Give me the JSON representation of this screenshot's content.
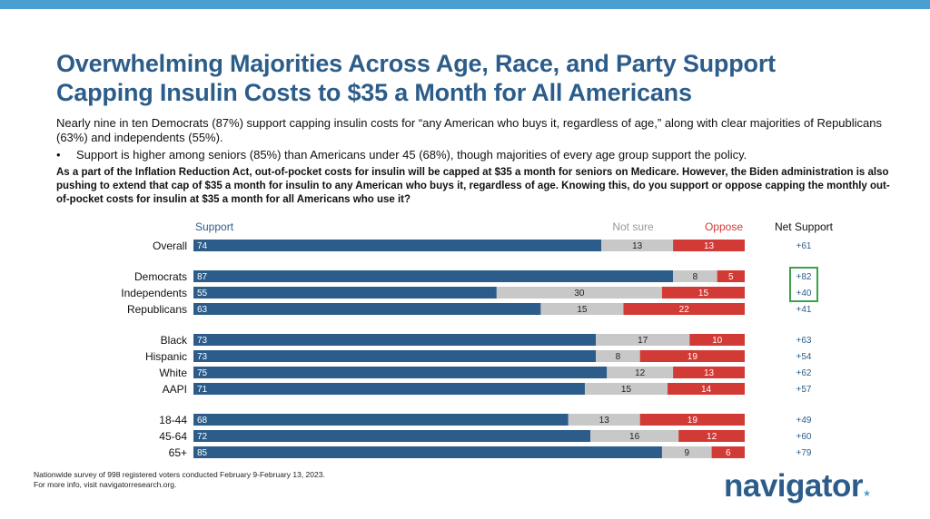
{
  "title_line1": "Overwhelming Majorities Across Age, Race, and Party Support",
  "title_line2": "Capping Insulin Costs to $35 a Month for All Americans",
  "subtitle": "Nearly nine in ten Democrats (87%) support capping insulin costs for “any American who buys it, regardless of age,” along with clear majorities of Republicans (63%) and independents (55%).",
  "bullet_marker": "•",
  "bullet": "Support is higher among seniors (85%) than Americans under 45 (68%), though majorities of every age group support the policy.",
  "question": "As a part of the Inflation Reduction Act, out-of-pocket costs for insulin will be capped at $35 a month for seniors on Medicare. However, the Biden administration is also pushing to extend that cap of $35 a month for insulin to any American who buys it, regardless of age. Knowing this, do you support or oppose capping the monthly out-of-pocket costs for insulin at $35 a month for all Americans who use it?",
  "footnote_line1": "Nationwide survey of 998 registered voters conducted February 9-February 13, 2023.",
  "footnote_line2": "For more info, visit navigatorresearch.org.",
  "logo_text": "navigator",
  "logo_star": "★",
  "colors": {
    "support": "#2c5d8a",
    "not_sure": "#c8c8c8",
    "oppose": "#d23a35",
    "net_highlight_box": "#3aa34a",
    "title": "#2c5d8a"
  },
  "chart_data": {
    "type": "bar",
    "orientation": "horizontal",
    "stacked": true,
    "headers": {
      "support": "Support",
      "not_sure": "Not sure",
      "oppose": "Oppose",
      "net": "Net Support"
    },
    "groups": [
      {
        "rows": [
          {
            "label": "Overall",
            "support": 74,
            "not_sure": 13,
            "oppose": 13,
            "net": "+61"
          }
        ]
      },
      {
        "rows": [
          {
            "label": "Democrats",
            "support": 87,
            "not_sure": 8,
            "oppose": 5,
            "net": "+82",
            "highlight": true
          },
          {
            "label": "Independents",
            "support": 55,
            "not_sure": 30,
            "oppose": 15,
            "net": "+40",
            "highlight": true
          },
          {
            "label": "Republicans",
            "support": 63,
            "not_sure": 15,
            "oppose": 22,
            "net": "+41"
          }
        ]
      },
      {
        "rows": [
          {
            "label": "Black",
            "support": 73,
            "not_sure": 17,
            "oppose": 10,
            "net": "+63"
          },
          {
            "label": "Hispanic",
            "support": 73,
            "not_sure": 8,
            "oppose": 19,
            "net": "+54"
          },
          {
            "label": "White",
            "support": 75,
            "not_sure": 12,
            "oppose": 13,
            "net": "+62"
          },
          {
            "label": "AAPI",
            "support": 71,
            "not_sure": 15,
            "oppose": 14,
            "net": "+57"
          }
        ]
      },
      {
        "rows": [
          {
            "label": "18-44",
            "support": 68,
            "not_sure": 13,
            "oppose": 19,
            "net": "+49"
          },
          {
            "label": "45-64",
            "support": 72,
            "not_sure": 16,
            "oppose": 12,
            "net": "+60"
          },
          {
            "label": "65+",
            "support": 85,
            "not_sure": 9,
            "oppose": 6,
            "net": "+79"
          }
        ]
      }
    ]
  }
}
